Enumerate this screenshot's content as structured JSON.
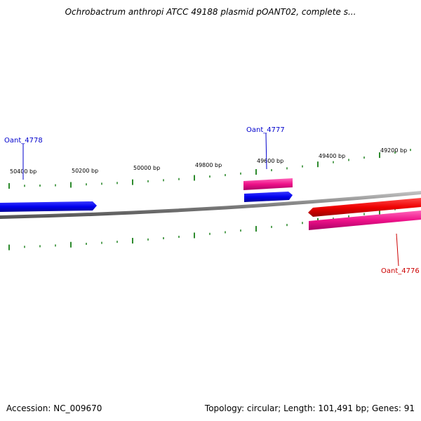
{
  "title": "Ochrobactrum anthropi ATCC 49188 plasmid pOANT02, complete s...",
  "footer": {
    "accession": "Accession: NC_009670",
    "topology": "Topology: circular; Length: 101,491 bp; Genes: 91"
  },
  "scale_labels": [
    "50400 bp",
    "50200 bp",
    "50000 bp",
    "49800 bp",
    "49600 bp",
    "49400 bp",
    "49200 bp"
  ],
  "genes": [
    {
      "id": "Oant_4778",
      "color": "#0000cc"
    },
    {
      "id": "Oant_4777",
      "color": "#0000cc"
    },
    {
      "id": "Oant_4776",
      "color": "#cc0000"
    }
  ],
  "colors": {
    "backbone": "#808080",
    "tick": "#2e8b2e",
    "cds_forward": "#0000ee",
    "cds_reverse": "#ee0000",
    "rna_feature": "#ee1188"
  }
}
